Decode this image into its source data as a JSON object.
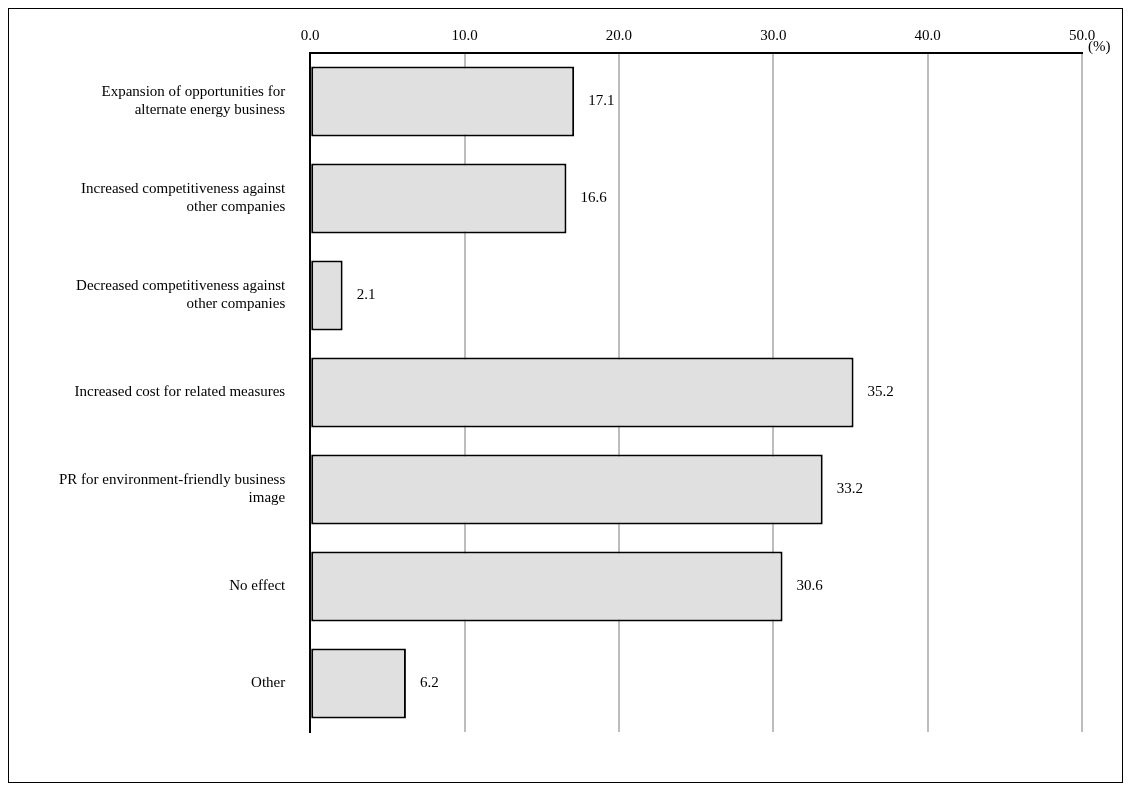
{
  "chart_data": {
    "type": "bar",
    "orientation": "horizontal",
    "categories": [
      "Expansion of opportunities for alternate energy business",
      "Increased competitiveness against other companies",
      "Decreased competitiveness against other companies",
      "Increased cost for related measures",
      "PR for environment-friendly business image",
      "No effect",
      "Other"
    ],
    "values": [
      17.1,
      16.6,
      2.1,
      35.2,
      33.2,
      30.6,
      6.2
    ],
    "color": "#e0e0e0",
    "xlabel": "(%)",
    "xlim": [
      0,
      50
    ],
    "xticks": [
      {
        "value": 0,
        "label": "0.0"
      },
      {
        "value": 10,
        "label": "10.0"
      },
      {
        "value": 20,
        "label": "20.0"
      },
      {
        "value": 30,
        "label": "30.0"
      },
      {
        "value": 40,
        "label": "40.0"
      },
      {
        "value": 50,
        "label": "50.0"
      }
    ],
    "grid": "x",
    "data_labels": true,
    "legend": false
  }
}
